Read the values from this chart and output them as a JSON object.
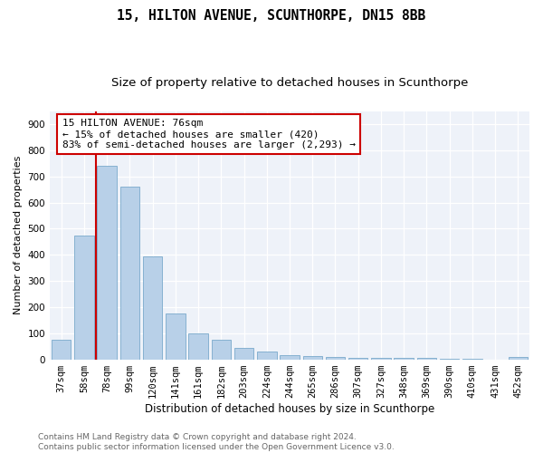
{
  "title1": "15, HILTON AVENUE, SCUNTHORPE, DN15 8BB",
  "title2": "Size of property relative to detached houses in Scunthorpe",
  "xlabel": "Distribution of detached houses by size in Scunthorpe",
  "ylabel": "Number of detached properties",
  "categories": [
    "37sqm",
    "58sqm",
    "78sqm",
    "99sqm",
    "120sqm",
    "141sqm",
    "161sqm",
    "182sqm",
    "203sqm",
    "224sqm",
    "244sqm",
    "265sqm",
    "286sqm",
    "307sqm",
    "327sqm",
    "348sqm",
    "369sqm",
    "390sqm",
    "410sqm",
    "431sqm",
    "452sqm"
  ],
  "values": [
    75,
    475,
    740,
    660,
    393,
    175,
    100,
    75,
    45,
    30,
    15,
    13,
    10,
    7,
    4,
    4,
    4,
    2,
    2,
    0,
    8
  ],
  "bar_color": "#b8d0e8",
  "bar_edge_color": "#7aaacb",
  "vline_color": "#cc0000",
  "annotation_text": "15 HILTON AVENUE: 76sqm\n← 15% of detached houses are smaller (420)\n83% of semi-detached houses are larger (2,293) →",
  "annotation_box_color": "#ffffff",
  "annotation_box_edge_color": "#cc0000",
  "ylim": [
    0,
    950
  ],
  "yticks": [
    0,
    100,
    200,
    300,
    400,
    500,
    600,
    700,
    800,
    900
  ],
  "bg_color": "#eef2f9",
  "footnote": "Contains HM Land Registry data © Crown copyright and database right 2024.\nContains public sector information licensed under the Open Government Licence v3.0.",
  "title1_fontsize": 10.5,
  "title2_fontsize": 9.5,
  "xlabel_fontsize": 8.5,
  "ylabel_fontsize": 8,
  "tick_fontsize": 7.5,
  "annotation_fontsize": 8,
  "footnote_fontsize": 6.5
}
